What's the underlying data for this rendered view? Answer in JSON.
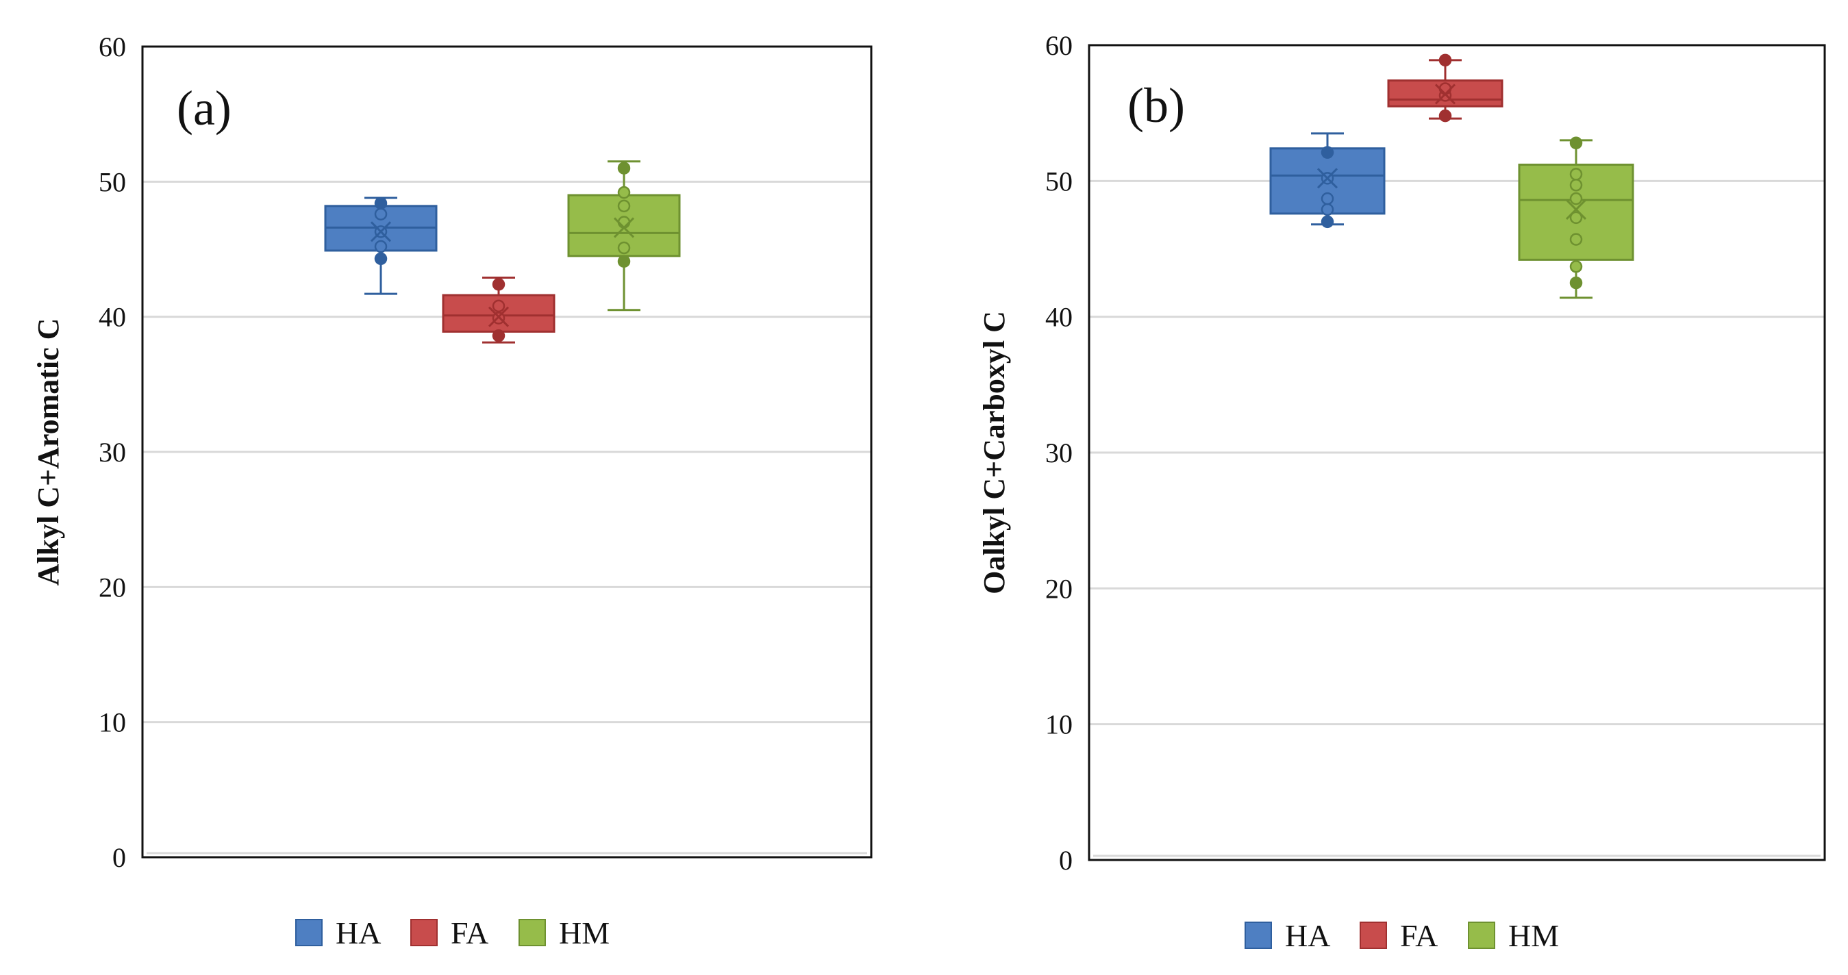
{
  "chart_data": [
    {
      "type": "box",
      "panel_label": "(a)",
      "title": "",
      "xlabel": "",
      "ylabel": "Alkyl C+Aromatic C",
      "ylim": [
        0,
        60
      ],
      "yticks": [
        0,
        10,
        20,
        30,
        40,
        50,
        60
      ],
      "grid": true,
      "legend": [
        "HA",
        "FA",
        "HM"
      ],
      "legend_position": "bottom",
      "series": [
        {
          "name": "HA",
          "color": "#4E7FC2",
          "edge_color": "#2F5F9E",
          "whisker_low": 41.7,
          "q1": 44.9,
          "median": 46.6,
          "q3": 48.2,
          "whisker_high": 48.8,
          "mean": 46.3,
          "points": [
            44.3,
            45.2,
            46.3,
            47.6,
            48.4
          ]
        },
        {
          "name": "FA",
          "color": "#C84C4C",
          "edge_color": "#A03030",
          "whisker_low": 38.1,
          "q1": 38.9,
          "median": 40.1,
          "q3": 41.6,
          "whisker_high": 42.9,
          "mean": 40.0,
          "points": [
            38.6,
            39.9,
            40.8,
            42.4
          ]
        },
        {
          "name": "HM",
          "color": "#96BC4A",
          "edge_color": "#6E9130",
          "whisker_low": 40.5,
          "q1": 44.5,
          "median": 46.2,
          "q3": 49.0,
          "whisker_high": 51.5,
          "mean": 46.6,
          "points": [
            44.1,
            45.1,
            47.0,
            48.2,
            49.2,
            51.0
          ]
        }
      ]
    },
    {
      "type": "box",
      "panel_label": "(b)",
      "title": "",
      "xlabel": "",
      "ylabel": "Oalkyl C+Carboxyl C",
      "ylim": [
        0,
        60
      ],
      "yticks": [
        0,
        10,
        20,
        30,
        40,
        50,
        60
      ],
      "grid": true,
      "legend": [
        "HA",
        "FA",
        "HM"
      ],
      "legend_position": "bottom",
      "series": [
        {
          "name": "HA",
          "color": "#4E7FC2",
          "edge_color": "#2F5F9E",
          "whisker_low": 46.8,
          "q1": 47.6,
          "median": 50.4,
          "q3": 52.4,
          "whisker_high": 53.5,
          "mean": 50.2,
          "points": [
            47.0,
            47.9,
            48.7,
            50.2,
            52.1
          ]
        },
        {
          "name": "FA",
          "color": "#C84C4C",
          "edge_color": "#A03030",
          "whisker_low": 54.6,
          "q1": 55.5,
          "median": 56.0,
          "q3": 57.4,
          "whisker_high": 58.9,
          "mean": 56.4,
          "points": [
            54.8,
            56.3,
            56.8,
            58.9
          ]
        },
        {
          "name": "HM",
          "color": "#96BC4A",
          "edge_color": "#6E9130",
          "whisker_low": 41.4,
          "q1": 44.2,
          "median": 48.6,
          "q3": 51.2,
          "whisker_high": 53.0,
          "mean": 47.9,
          "points": [
            42.5,
            43.7,
            45.7,
            47.3,
            48.7,
            49.7,
            50.5,
            52.8
          ]
        }
      ]
    }
  ]
}
